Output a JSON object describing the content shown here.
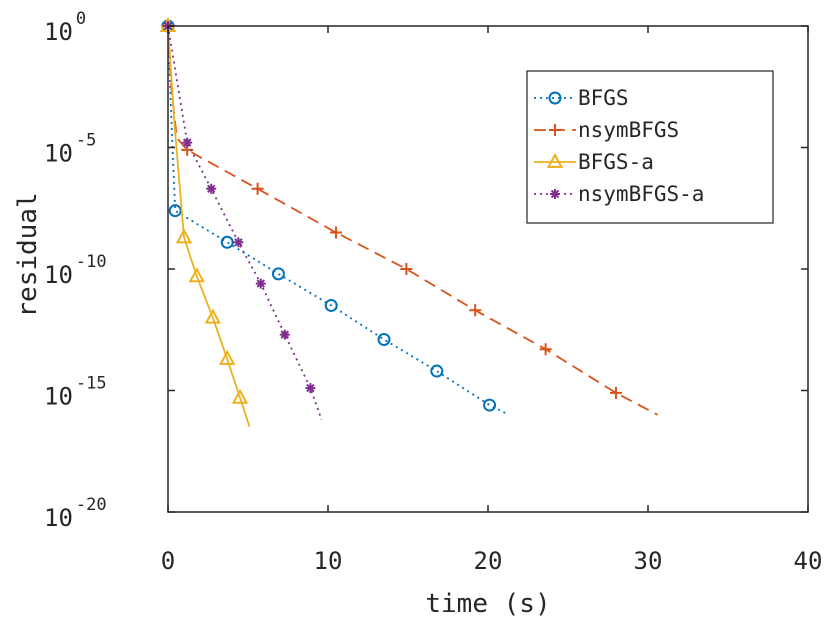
{
  "chart_data": {
    "type": "line",
    "title": "",
    "xlabel": "time (s)",
    "ylabel": "residual",
    "xlim": [
      0,
      40
    ],
    "ylim_log10": [
      -20,
      0
    ],
    "y_scale": "log",
    "grid": false,
    "box": true,
    "legend_position": "top-right",
    "x_ticks": [
      "0",
      "10",
      "20",
      "30",
      "40"
    ],
    "y_ticks": [
      {
        "base": "10",
        "exp": "0",
        "log10": 0
      },
      {
        "base": "10",
        "exp": "-5",
        "log10": -5
      },
      {
        "base": "10",
        "exp": "-10",
        "log10": -10
      },
      {
        "base": "10",
        "exp": "-15",
        "log10": -15
      },
      {
        "base": "10",
        "exp": "-20",
        "log10": -20
      }
    ],
    "series": [
      {
        "name": "BFGS",
        "color": "#0072BD",
        "line_style": "dotted",
        "marker": "circle",
        "line_log10": [
          [
            0,
            0
          ],
          [
            0.25,
            -4.5
          ],
          [
            0.45,
            -7.6
          ],
          [
            3.7,
            -8.9
          ],
          [
            6.9,
            -10.2
          ],
          [
            10.2,
            -11.5
          ],
          [
            13.5,
            -12.9
          ],
          [
            16.8,
            -14.2
          ],
          [
            20.1,
            -15.6
          ],
          [
            21.3,
            -16.0
          ]
        ],
        "markers_log10": [
          [
            0,
            0
          ],
          [
            0.45,
            -7.6
          ],
          [
            3.7,
            -8.9
          ],
          [
            6.9,
            -10.2
          ],
          [
            10.2,
            -11.5
          ],
          [
            13.5,
            -12.9
          ],
          [
            16.8,
            -14.2
          ],
          [
            20.1,
            -15.6
          ]
        ]
      },
      {
        "name": "nsymBFGS",
        "color": "#D95319",
        "line_style": "dashed",
        "marker": "plus",
        "line_log10": [
          [
            0,
            0
          ],
          [
            0.2,
            -2.5
          ],
          [
            0.55,
            -4.6
          ],
          [
            1.2,
            -5.1
          ],
          [
            5.6,
            -6.7
          ],
          [
            10.5,
            -8.5
          ],
          [
            14.9,
            -10.0
          ],
          [
            19.2,
            -11.7
          ],
          [
            23.6,
            -13.3
          ],
          [
            28.0,
            -15.1
          ],
          [
            30.6,
            -16.0
          ]
        ],
        "markers_log10": [
          [
            0,
            0
          ],
          [
            1.2,
            -5.1
          ],
          [
            5.6,
            -6.7
          ],
          [
            10.5,
            -8.5
          ],
          [
            14.9,
            -10.0
          ],
          [
            19.2,
            -11.7
          ],
          [
            23.6,
            -13.3
          ],
          [
            28.0,
            -15.1
          ]
        ]
      },
      {
        "name": "BFGS-a",
        "color": "#EDB120",
        "line_style": "solid",
        "marker": "triangle",
        "line_log10": [
          [
            0,
            0
          ],
          [
            0.4,
            -4.0
          ],
          [
            1.0,
            -8.7
          ],
          [
            1.8,
            -10.3
          ],
          [
            2.8,
            -12.0
          ],
          [
            3.7,
            -13.7
          ],
          [
            4.5,
            -15.3
          ],
          [
            5.1,
            -16.5
          ]
        ],
        "markers_log10": [
          [
            0,
            0
          ],
          [
            1.0,
            -8.7
          ],
          [
            1.8,
            -10.3
          ],
          [
            2.8,
            -12.0
          ],
          [
            3.7,
            -13.7
          ],
          [
            4.5,
            -15.3
          ]
        ]
      },
      {
        "name": "nsymBFGS-a",
        "color": "#7E2F8E",
        "line_style": "dotted",
        "marker": "asterisk",
        "line_log10": [
          [
            0,
            0
          ],
          [
            1.2,
            -4.8
          ],
          [
            2.7,
            -6.7
          ],
          [
            4.4,
            -8.9
          ],
          [
            5.8,
            -10.6
          ],
          [
            7.3,
            -12.7
          ],
          [
            8.9,
            -14.9
          ],
          [
            9.6,
            -16.2
          ]
        ],
        "markers_log10": [
          [
            0,
            0
          ],
          [
            1.2,
            -4.8
          ],
          [
            2.7,
            -6.7
          ],
          [
            4.4,
            -8.9
          ],
          [
            5.8,
            -10.6
          ],
          [
            7.3,
            -12.7
          ],
          [
            8.9,
            -14.9
          ]
        ]
      }
    ]
  }
}
